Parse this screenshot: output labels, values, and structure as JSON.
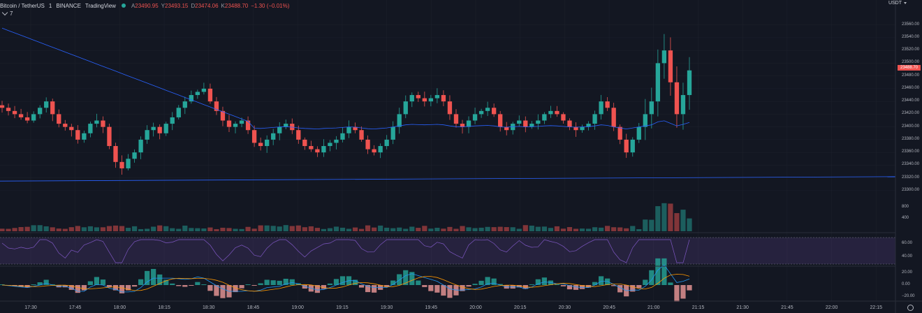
{
  "legend": {
    "symbol": "Bitcoin / TetherUS",
    "interval": "1",
    "exchange": "BINANCE",
    "source": "TradingView",
    "open_label": "A",
    "open": "23490.95",
    "high_label": "Y",
    "high": "23493.15",
    "low_label": "D",
    "low": "23474.06",
    "close_label": "K",
    "close": "23488.70",
    "change": "−1.30 (−0.01%)"
  },
  "indicators_toggle": {
    "count": "7"
  },
  "currency": "USDT",
  "last_price": "23488.70",
  "price_axis": [
    "23560.00",
    "23540.00",
    "23520.00",
    "23500.00",
    "23480.00",
    "23460.00",
    "23440.00",
    "23420.00",
    "23400.00",
    "23380.00",
    "23360.00",
    "23340.00",
    "23320.00",
    "23300.00"
  ],
  "volume_axis": [
    "800",
    "400"
  ],
  "rsi_axis": [
    "60.00",
    "40.00"
  ],
  "macd_axis": [
    "20.00",
    "0.00",
    "−20.00"
  ],
  "time_axis": [
    "17:30",
    "17:45",
    "18:00",
    "18:15",
    "18:30",
    "18:45",
    "19:00",
    "19:15",
    "19:30",
    "19:45",
    "20:00",
    "20:15",
    "20:30",
    "20:45",
    "21:00",
    "21:15",
    "21:30",
    "21:45",
    "22:00",
    "22:15"
  ],
  "colors": {
    "up": "#26a69a",
    "down": "#ef5350",
    "ma": "#2962ff",
    "rsi_line": "#7e57c2",
    "rsi_band": "#7e57c2",
    "macd": "#2196f3",
    "signal": "#ff9800",
    "background": "#131722",
    "grid": "#1e222d"
  },
  "chart_data": {
    "type": "candlestick",
    "y_range": [
      23290,
      23575
    ],
    "x_range": [
      "17:28",
      "22:21"
    ],
    "candles_close_path": [
      23430,
      23425,
      23420,
      23415,
      23410,
      23420,
      23430,
      23440,
      23420,
      23405,
      23400,
      23395,
      23380,
      23390,
      23405,
      23410,
      23400,
      23370,
      23345,
      23335,
      23350,
      23360,
      23380,
      23395,
      23400,
      23390,
      23405,
      23415,
      23430,
      23440,
      23450,
      23455,
      23460,
      23440,
      23425,
      23410,
      23400,
      23405,
      23410,
      23395,
      23375,
      23370,
      23380,
      23390,
      23400,
      23405,
      23395,
      23380,
      23370,
      23365,
      23360,
      23370,
      23375,
      23380,
      23390,
      23400,
      23395,
      23380,
      23365,
      23360,
      23370,
      23380,
      23400,
      23420,
      23440,
      23450,
      23445,
      23440,
      23445,
      23450,
      23440,
      23420,
      23405,
      23400,
      23410,
      23420,
      23425,
      23430,
      23420,
      23400,
      23395,
      23405,
      23410,
      23400,
      23405,
      23410,
      23420,
      23425,
      23420,
      23410,
      23400,
      23395,
      23400,
      23405,
      23420,
      23440,
      23430,
      23400,
      23380,
      23360,
      23380,
      23400,
      23420,
      23440,
      23500,
      23520,
      23470,
      23420,
      23450,
      23488.7
    ],
    "ma_long": {
      "start": 23555,
      "end": 23405
    },
    "ma_very_long": {
      "start": 23315,
      "end": 23322
    }
  }
}
